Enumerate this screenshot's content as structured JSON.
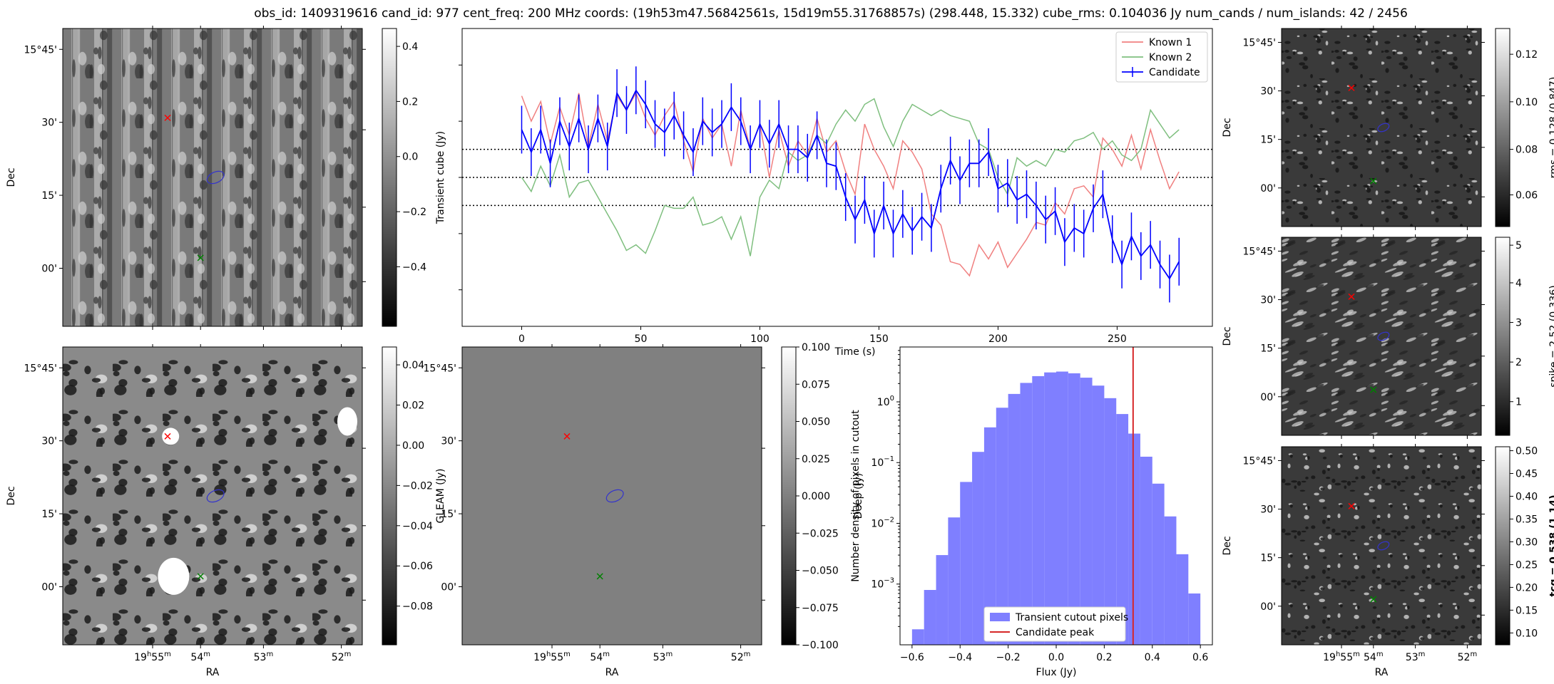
{
  "title": "obs_id: 1409319616 cand_id: 977 cent_freq: 200 MHz coords: (19h53m47.56842561s, 15d19m55.31768857s) (298.448, 15.332) cube_rms: 0.104036 Jy num_cands / num_islands: 42 / 2456",
  "colors": {
    "candidate": "#0000ff",
    "known1": "#f08080",
    "known2": "#7fbf7f",
    "hist_fill": "#7f7fff",
    "candidate_peak": "#d62728",
    "marker_red": "#ff0000",
    "marker_green": "#008000",
    "contour": "#3333cc"
  },
  "sky_axes": {
    "ra_ticks": [
      "19h55m",
      "54m",
      "53m",
      "52m"
    ],
    "dec_ticks": [
      "15°45'",
      "30'",
      "15'",
      "00'"
    ],
    "xlabel": "RA",
    "ylabel": "Dec"
  },
  "cutouts": [
    {
      "id": "transient",
      "colorbar_label": "Transient cube (Jy)",
      "ticks": [
        "0.4",
        "0.2",
        "0.0",
        "−0.2",
        "−0.4"
      ],
      "show_x_ticks": false,
      "show_xlabel": false,
      "show_ylabel": true,
      "texture": "stripes",
      "seed": 11
    },
    {
      "id": "gleam",
      "colorbar_label": "GLEAM (Jy)",
      "ticks": [
        "0.04",
        "0.02",
        "0.00",
        "−0.02",
        "−0.04",
        "−0.06",
        "−0.08"
      ],
      "show_x_ticks": true,
      "show_xlabel": true,
      "show_ylabel": true,
      "texture": "blobs",
      "seed": 23
    },
    {
      "id": "deep",
      "colorbar_label": "Deep (Jy)",
      "ticks": [
        "0.100",
        "0.075",
        "0.050",
        "0.025",
        "0.000",
        "−0.025",
        "−0.050",
        "−0.075",
        "−0.100"
      ],
      "show_x_ticks": true,
      "show_xlabel": true,
      "show_ylabel": false,
      "texture": "flat",
      "seed": 0
    },
    {
      "id": "rms",
      "colorbar_label": "rms = 0.128 (0.847)",
      "ticks": [
        "0.12",
        "0.10",
        "0.08",
        "0.06"
      ],
      "show_x_ticks": false,
      "show_xlabel": false,
      "show_ylabel": true,
      "texture": "noise",
      "seed": 37
    },
    {
      "id": "spike",
      "colorbar_label": "spike = 2.52 (0.336)",
      "ticks": [
        "5",
        "4",
        "3",
        "2",
        "1"
      ],
      "show_x_ticks": false,
      "show_xlabel": false,
      "show_ylabel": true,
      "texture": "diagonal",
      "seed": 41
    },
    {
      "id": "tcg",
      "colorbar_label": "tcg = 0.538 (1.14)",
      "ticks": [
        "0.50",
        "0.45",
        "0.40",
        "0.35",
        "0.30",
        "0.25",
        "0.20",
        "0.15",
        "0.10"
      ],
      "show_x_ticks": true,
      "show_xlabel": true,
      "show_ylabel": true,
      "texture": "noise",
      "seed": 53
    }
  ],
  "chart_data": [
    {
      "type": "line",
      "xlabel": "Time (s)",
      "ylabel": "",
      "xlim": [
        -25,
        290
      ],
      "ylim": [
        -0.53,
        0.53
      ],
      "x_ticks": [
        0,
        50,
        100,
        150,
        200,
        250
      ],
      "reference_lines": [
        0.1,
        0.0,
        -0.1
      ],
      "legend": "top-right",
      "series": [
        {
          "name": "Known 1",
          "x": [
            0,
            4,
            8,
            12,
            16,
            20,
            24,
            28,
            32,
            36,
            40,
            44,
            48,
            52,
            56,
            60,
            64,
            68,
            72,
            76,
            80,
            84,
            88,
            92,
            96,
            100,
            104,
            108,
            112,
            116,
            120,
            124,
            128,
            132,
            136,
            140,
            144,
            148,
            152,
            156,
            160,
            164,
            168,
            172,
            176,
            180,
            184,
            188,
            192,
            196,
            200,
            204,
            208,
            212,
            216,
            220,
            224,
            228,
            232,
            236,
            240,
            244,
            248,
            252,
            256,
            260,
            264,
            268,
            272,
            276
          ],
          "y": [
            0.29,
            0.2,
            0.27,
            0.12,
            0.25,
            0.15,
            0.3,
            0.11,
            0.26,
            0.13,
            0.29,
            0.24,
            0.3,
            0.21,
            0.15,
            0.22,
            0.27,
            0.13,
            0.02,
            0.21,
            0.14,
            0.19,
            0.04,
            0.24,
            0.1,
            0.19,
            0.0,
            0.17,
            0.04,
            0.13,
            0.08,
            0.21,
            0.09,
            0.13,
            0.02,
            -0.06,
            0.19,
            0.1,
            0.04,
            -0.04,
            0.13,
            0.09,
            0.03,
            -0.13,
            -0.17,
            -0.3,
            -0.31,
            -0.35,
            -0.24,
            -0.29,
            -0.23,
            -0.32,
            -0.27,
            -0.22,
            -0.16,
            -0.17,
            -0.09,
            -0.13,
            -0.04,
            -0.03,
            -0.07,
            0.14,
            0.1,
            0.04,
            0.15,
            0.03,
            0.17,
            0.06,
            -0.04,
            0.02
          ]
        },
        {
          "name": "Known 2",
          "x": [
            0,
            4,
            8,
            12,
            16,
            20,
            24,
            28,
            32,
            36,
            40,
            44,
            48,
            52,
            56,
            60,
            64,
            68,
            72,
            76,
            80,
            84,
            88,
            92,
            96,
            100,
            104,
            108,
            112,
            116,
            120,
            124,
            128,
            132,
            136,
            140,
            144,
            148,
            152,
            156,
            160,
            164,
            168,
            172,
            176,
            180,
            184,
            188,
            192,
            196,
            200,
            204,
            208,
            212,
            216,
            220,
            224,
            228,
            232,
            236,
            240,
            244,
            248,
            252,
            256,
            260,
            264,
            268,
            272,
            276
          ],
          "y": [
            0.0,
            -0.05,
            0.04,
            -0.03,
            0.08,
            -0.07,
            -0.02,
            -0.01,
            -0.07,
            -0.13,
            -0.19,
            -0.26,
            -0.24,
            -0.27,
            -0.19,
            -0.1,
            -0.11,
            -0.11,
            -0.07,
            -0.17,
            -0.16,
            -0.14,
            -0.22,
            -0.14,
            -0.28,
            -0.07,
            -0.01,
            -0.04,
            0.09,
            0.06,
            0.08,
            0.15,
            0.12,
            0.19,
            0.24,
            0.2,
            0.26,
            0.28,
            0.18,
            0.11,
            0.2,
            0.26,
            0.24,
            0.22,
            0.24,
            0.22,
            0.21,
            0.2,
            0.12,
            0.1,
            0.0,
            -0.06,
            0.07,
            0.04,
            0.06,
            0.04,
            0.1,
            0.09,
            0.13,
            0.14,
            0.16,
            0.1,
            0.13,
            0.08,
            0.06,
            0.1,
            0.24,
            0.19,
            0.14,
            0.17
          ]
        },
        {
          "name": "Candidate",
          "x": [
            0,
            4,
            8,
            12,
            16,
            20,
            24,
            28,
            32,
            36,
            40,
            44,
            48,
            52,
            56,
            60,
            64,
            68,
            72,
            76,
            80,
            84,
            88,
            92,
            96,
            100,
            104,
            108,
            112,
            116,
            120,
            124,
            128,
            132,
            136,
            140,
            144,
            148,
            152,
            156,
            160,
            164,
            168,
            172,
            176,
            180,
            184,
            188,
            192,
            196,
            200,
            204,
            208,
            212,
            216,
            220,
            224,
            228,
            232,
            236,
            240,
            244,
            248,
            252,
            256,
            260,
            264,
            268,
            272,
            276
          ],
          "y": [
            0.17,
            0.09,
            0.17,
            0.05,
            0.2,
            0.11,
            0.21,
            0.1,
            0.21,
            0.11,
            0.3,
            0.24,
            0.31,
            0.26,
            0.19,
            0.16,
            0.22,
            0.15,
            0.09,
            0.2,
            0.16,
            0.19,
            0.25,
            0.2,
            0.1,
            0.19,
            0.12,
            0.19,
            0.1,
            0.1,
            0.07,
            0.15,
            0.05,
            0.04,
            -0.07,
            -0.15,
            -0.08,
            -0.2,
            -0.1,
            -0.2,
            -0.13,
            -0.19,
            -0.14,
            -0.18,
            -0.04,
            0.06,
            -0.01,
            0.05,
            0.05,
            0.09,
            -0.04,
            -0.02,
            -0.08,
            -0.06,
            -0.1,
            -0.15,
            -0.12,
            -0.23,
            -0.18,
            -0.2,
            -0.11,
            -0.06,
            -0.22,
            -0.31,
            -0.21,
            -0.28,
            -0.24,
            -0.31,
            -0.36,
            -0.3
          ],
          "error": 0.085
        }
      ]
    },
    {
      "type": "bar",
      "subtype": "histogram",
      "xlabel": "Flux (Jy)",
      "ylabel": "Number density of pixels in cutout",
      "xlim": [
        -0.65,
        0.65
      ],
      "x_ticks": [
        -0.6,
        -0.4,
        -0.2,
        0.0,
        0.2,
        0.4,
        0.6
      ],
      "y_scale": "log",
      "ylim": [
        0.0001,
        8
      ],
      "y_ticks": [
        0.001,
        0.01,
        0.1,
        1
      ],
      "bin_edges": [
        -0.6,
        -0.55,
        -0.5,
        -0.45,
        -0.4,
        -0.35,
        -0.3,
        -0.25,
        -0.2,
        -0.15,
        -0.1,
        -0.05,
        0.0,
        0.05,
        0.1,
        0.15,
        0.2,
        0.25,
        0.3,
        0.35,
        0.4,
        0.45,
        0.5,
        0.55,
        0.6
      ],
      "density": [
        0.00018,
        0.0008,
        0.003,
        0.0125,
        0.048,
        0.15,
        0.38,
        0.8,
        1.35,
        2.05,
        2.65,
        3.05,
        3.15,
        2.95,
        2.5,
        1.85,
        1.15,
        0.63,
        0.3,
        0.125,
        0.045,
        0.013,
        0.0031,
        0.0007
      ],
      "candidate_peak": 0.32,
      "legend_entries": [
        "Transient cutout pixels",
        "Candidate peak"
      ],
      "legend": "lower center"
    }
  ]
}
